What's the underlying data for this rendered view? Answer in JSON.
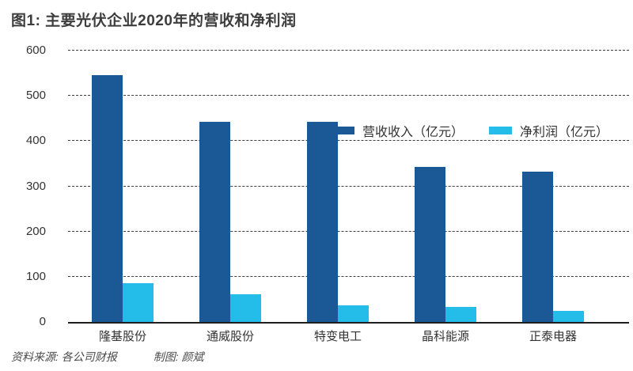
{
  "title": "图1: 主要光伏企业2020年的营收和净利润",
  "footer": {
    "source": "资料来源: 各公司财报",
    "credit": "制图: 颜斌"
  },
  "chart_data": {
    "type": "bar",
    "title": "图1: 主要光伏企业2020年的营收和净利润",
    "categories": [
      "隆基股份",
      "通威股份",
      "特变电工",
      "晶科能源",
      "正泰电器"
    ],
    "series": [
      {
        "name": "营收收入（亿元）",
        "color": "#1a5896",
        "values": [
          546,
          442,
          442,
          342,
          332
        ]
      },
      {
        "name": "净利润（亿元）",
        "color": "#24bdea",
        "values": [
          86,
          62,
          37,
          33,
          24
        ]
      }
    ],
    "xlabel": "",
    "ylabel": "",
    "ylim": [
      0,
      600
    ],
    "yticks": [
      0,
      100,
      200,
      300,
      400,
      500,
      600
    ],
    "grid": "dashed-horizontal",
    "legend_position": "top-center-inside",
    "axis_color": "#1f1f1f",
    "text_color": "#333333"
  }
}
